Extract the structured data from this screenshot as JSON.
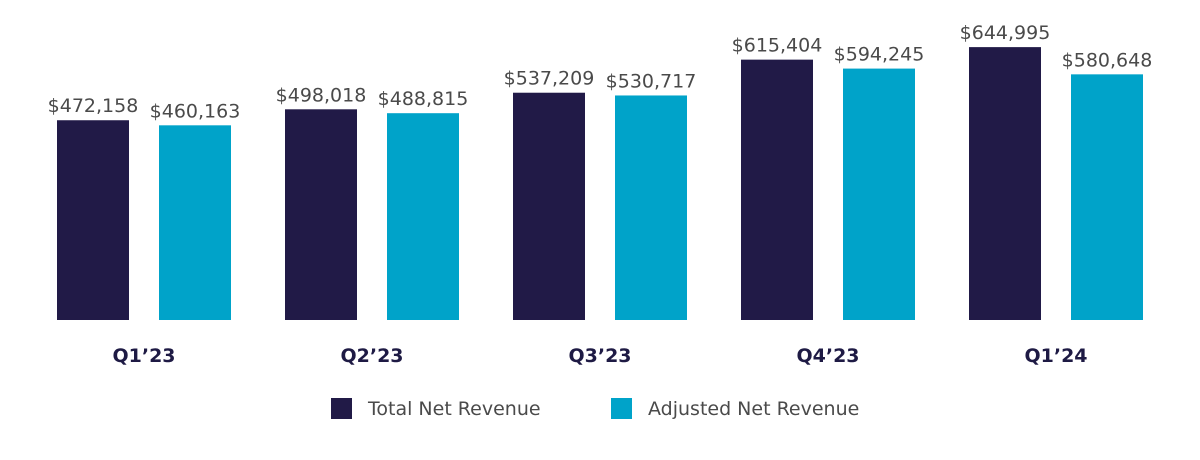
{
  "chart_data": {
    "type": "bar",
    "title": "",
    "xlabel": "",
    "ylabel": "",
    "categories": [
      "Q1’23",
      "Q2’23",
      "Q3’23",
      "Q4’23",
      "Q1’24"
    ],
    "series": [
      {
        "name": "Total Net Revenue",
        "color": "#211a47",
        "values": [
          472158,
          498018,
          537209,
          615404,
          644995
        ],
        "labels": [
          "$472,158",
          "$498,018",
          "$537,209",
          "$615,404",
          "$644,995"
        ]
      },
      {
        "name": "Adjusted Net Revenue",
        "color": "#00a3c9",
        "values": [
          460163,
          488815,
          530717,
          594245,
          580648
        ],
        "labels": [
          "$460,163",
          "$488,815",
          "$530,717",
          "$594,245",
          "$580,648"
        ]
      }
    ],
    "ylim": [
      0,
      650000
    ],
    "grid": false,
    "legend_position": "bottom-center"
  }
}
